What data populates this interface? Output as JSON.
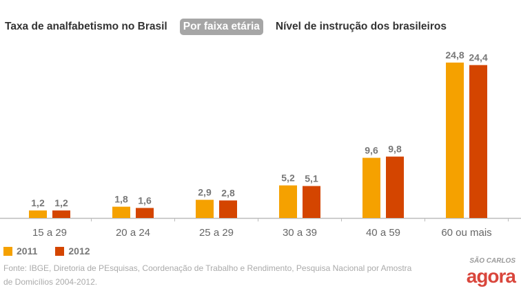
{
  "tabs": [
    {
      "label": "Taxa de analfabetismo no Brasil",
      "active": false
    },
    {
      "label": "Por faixa etária",
      "active": true
    },
    {
      "label": "Nível de instrução dos brasileiros",
      "active": false
    }
  ],
  "chart_data": {
    "type": "bar",
    "categories": [
      "15 a 29",
      "20 a 24",
      "25 a 29",
      "30 a 39",
      "40 a 59",
      "60 ou mais"
    ],
    "series": [
      {
        "name": "2011",
        "color": "#F5A100",
        "values": [
          1.2,
          1.8,
          2.9,
          5.2,
          9.6,
          24.8
        ],
        "labels": [
          "1,2",
          "1,8",
          "2,9",
          "5,2",
          "9,6",
          "24,8"
        ]
      },
      {
        "name": "2012",
        "color": "#D44500",
        "values": [
          1.2,
          1.6,
          2.8,
          5.1,
          9.8,
          24.4
        ],
        "labels": [
          "1,2",
          "1,6",
          "2,8",
          "5,1",
          "9,8",
          "24,4"
        ]
      }
    ],
    "ylim": [
      0,
      26
    ],
    "grid": false,
    "legend": "bottom-left"
  },
  "source": "Fonte: IBGE, Diretoria de PEsquisas, Coordenação de Trabalho e Rendimento, Pesquisa Nacional por Amostra de Domicílios 2004-2012.",
  "logo": {
    "top": "SÃO CARLOS",
    "main": "agora"
  }
}
